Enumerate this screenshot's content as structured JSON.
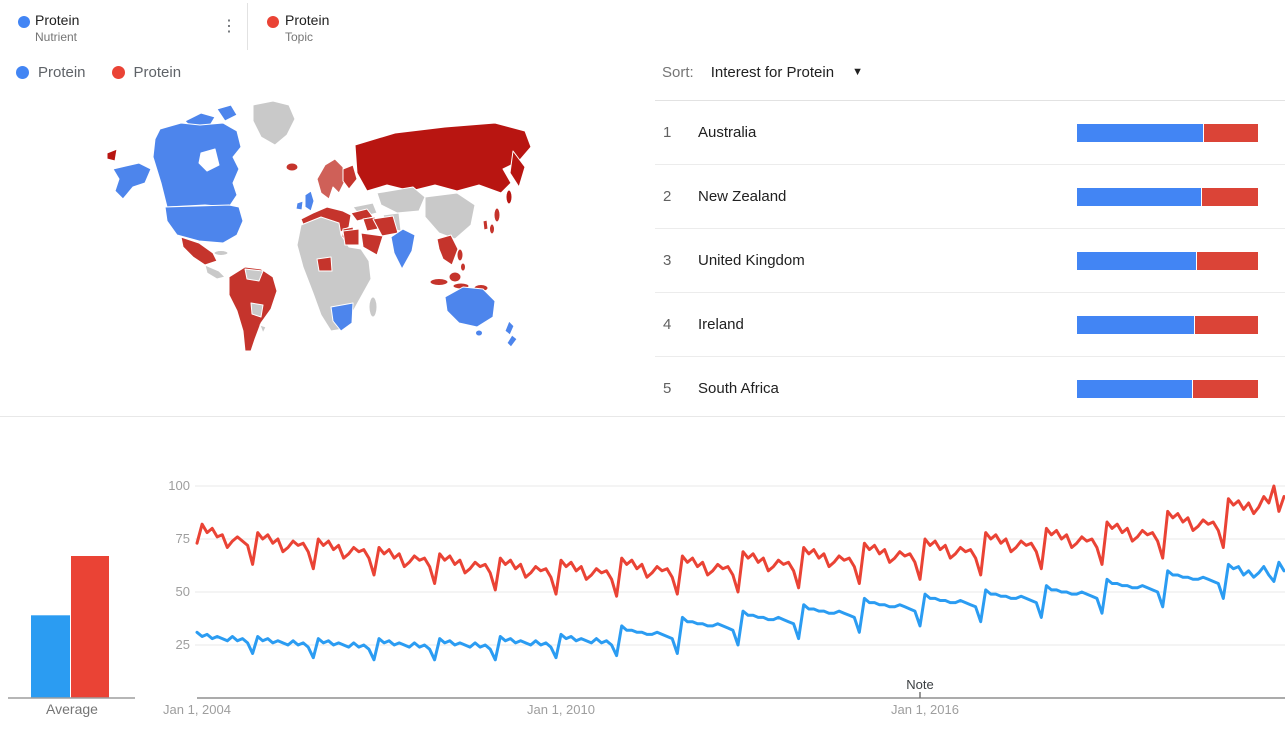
{
  "palette": {
    "dot_blue": "#4285f4",
    "dot_red": "#ea4335",
    "bar_blue": "#4285f4",
    "bar_red": "#db4437",
    "map_blue": "#4d85ec",
    "map_red_dark": "#b81511",
    "map_red": "#c5342c",
    "map_red_light": "#cf6058",
    "map_grey": "#c9c9c9",
    "grid_line": "#e8e8e8",
    "axis_line": "#8f8f8f",
    "divider": "#e2e2e2",
    "text_primary": "#212121",
    "text_secondary": "#757575",
    "text_axis": "#9e9e9e"
  },
  "header": {
    "menu_icon": "⋮",
    "terms": [
      {
        "title": "Protein",
        "subtitle": "Nutrient",
        "color": "#4285f4"
      },
      {
        "title": "Protein",
        "subtitle": "Topic",
        "color": "#ea4335"
      }
    ]
  },
  "legend": {
    "items": [
      {
        "label": "Protein",
        "color": "#4285f4"
      },
      {
        "label": "Protein",
        "color": "#ea4335"
      }
    ]
  },
  "map": {
    "regions": {
      "chukotka": "red_dark",
      "alaska": "blue",
      "canada": "blue",
      "arctic_islands_1": "blue",
      "arctic_islands_2": "blue",
      "usa": "blue",
      "greenland": "grey",
      "mexico": "red",
      "central_america": "grey",
      "cuba": "grey",
      "south_america": "red",
      "venezuela": "grey",
      "bolivia": "grey",
      "uruguay": "grey",
      "iceland": "red",
      "uk": "blue",
      "ireland": "blue",
      "scandinavia": "red_light",
      "finland": "red",
      "europe": "red",
      "iberia": "red",
      "italy": "red",
      "balkans": "red",
      "eastern_europe": "grey",
      "russia": "red_dark",
      "kamchatka": "red_dark",
      "sakhalin": "red_dark",
      "central_asia": "grey",
      "china": "grey",
      "afghanistan_pakistan": "grey",
      "turkey": "red",
      "iraq_syria": "red",
      "iran": "red",
      "saudi_arabia": "red",
      "egypt": "red",
      "africa": "grey",
      "nigeria": "red",
      "south_africa": "blue",
      "madagascar": "grey",
      "india": "blue",
      "indochina": "red",
      "philippines_north": "red",
      "philippines_south": "red",
      "borneo": "red",
      "sumatra": "red",
      "java": "red",
      "new_guinea": "red",
      "japan_north": "red",
      "japan_south": "red",
      "korea": "red",
      "australia": "blue",
      "tasmania": "blue",
      "new_zealand_north": "blue",
      "new_zealand_south": "blue"
    }
  },
  "geo_list": {
    "sort_label": "Sort:",
    "sort_value": "Interest for Protein",
    "sort_arrow": "▼",
    "rows": [
      {
        "rank": "1",
        "name": "Australia",
        "blue_pct": 70,
        "red_pct": 30
      },
      {
        "rank": "2",
        "name": "New Zealand",
        "blue_pct": 69,
        "red_pct": 31
      },
      {
        "rank": "3",
        "name": "United Kingdom",
        "blue_pct": 66,
        "red_pct": 34
      },
      {
        "rank": "4",
        "name": "Ireland",
        "blue_pct": 65,
        "red_pct": 35
      },
      {
        "rank": "5",
        "name": "South Africa",
        "blue_pct": 64,
        "red_pct": 36
      }
    ]
  },
  "average_chart": {
    "label": "Average",
    "values": [
      39,
      67
    ]
  },
  "chart_data": {
    "type": "line",
    "x_ticks": [
      "Jan 1, 2004",
      "Jan 1, 2010",
      "Jan 1, 2016"
    ],
    "y_ticks": [
      "100",
      "75",
      "50",
      "25"
    ],
    "ylim": [
      0,
      100
    ],
    "x_range": "monthly, Jan 2004 onward",
    "grid": true,
    "note_label": "Note",
    "series": [
      {
        "name": "Protein (Nutrient)",
        "color": "#2b9cf2",
        "values": [
          31,
          29,
          30,
          28,
          29,
          28,
          27,
          29,
          27,
          28,
          26,
          21,
          29,
          27,
          28,
          26,
          27,
          26,
          25,
          27,
          25,
          26,
          24,
          19,
          28,
          26,
          27,
          25,
          26,
          25,
          24,
          26,
          24,
          25,
          23,
          18,
          28,
          26,
          27,
          25,
          26,
          25,
          24,
          26,
          24,
          25,
          23,
          18,
          28,
          26,
          27,
          25,
          26,
          25,
          24,
          26,
          24,
          25,
          23,
          18,
          29,
          27,
          28,
          26,
          27,
          26,
          25,
          27,
          25,
          26,
          24,
          19,
          30,
          28,
          29,
          27,
          28,
          27,
          26,
          28,
          26,
          27,
          25,
          20,
          34,
          32,
          32,
          31,
          31,
          30,
          30,
          31,
          30,
          29,
          28,
          21,
          38,
          36,
          36,
          35,
          35,
          34,
          34,
          35,
          34,
          33,
          32,
          25,
          41,
          39,
          39,
          38,
          38,
          37,
          37,
          38,
          37,
          36,
          35,
          28,
          44,
          42,
          42,
          41,
          41,
          40,
          40,
          41,
          40,
          39,
          38,
          31,
          47,
          45,
          45,
          44,
          44,
          43,
          43,
          44,
          43,
          42,
          41,
          34,
          49,
          47,
          47,
          46,
          46,
          45,
          45,
          46,
          45,
          44,
          43,
          36,
          51,
          49,
          49,
          48,
          48,
          47,
          47,
          48,
          47,
          46,
          45,
          38,
          53,
          51,
          51,
          50,
          50,
          49,
          49,
          50,
          49,
          48,
          47,
          40,
          56,
          54,
          54,
          53,
          53,
          52,
          52,
          53,
          52,
          51,
          50,
          43,
          60,
          58,
          58,
          57,
          57,
          56,
          56,
          57,
          56,
          55,
          54,
          47,
          63,
          61,
          62,
          58,
          60,
          57,
          59,
          62,
          58,
          55,
          64,
          60
        ]
      },
      {
        "name": "Protein (Topic)",
        "color": "#ea4335",
        "values": [
          73,
          82,
          78,
          80,
          76,
          77,
          71,
          74,
          76,
          74,
          72,
          63,
          78,
          75,
          77,
          73,
          75,
          69,
          71,
          74,
          72,
          73,
          69,
          61,
          75,
          72,
          74,
          70,
          72,
          66,
          68,
          71,
          69,
          70,
          66,
          58,
          71,
          68,
          70,
          66,
          68,
          62,
          64,
          67,
          65,
          66,
          62,
          54,
          68,
          65,
          67,
          63,
          65,
          59,
          61,
          64,
          62,
          63,
          59,
          51,
          66,
          63,
          65,
          61,
          63,
          57,
          59,
          62,
          60,
          61,
          57,
          49,
          65,
          62,
          64,
          60,
          62,
          56,
          58,
          61,
          59,
          60,
          56,
          48,
          66,
          63,
          65,
          61,
          63,
          57,
          59,
          62,
          60,
          61,
          57,
          49,
          67,
          64,
          66,
          62,
          64,
          58,
          60,
          63,
          61,
          62,
          58,
          50,
          69,
          66,
          68,
          64,
          66,
          60,
          62,
          65,
          63,
          64,
          60,
          52,
          71,
          68,
          70,
          66,
          68,
          62,
          64,
          67,
          65,
          66,
          62,
          54,
          73,
          70,
          72,
          68,
          70,
          64,
          66,
          69,
          67,
          68,
          64,
          56,
          75,
          72,
          74,
          70,
          72,
          66,
          68,
          71,
          69,
          70,
          66,
          58,
          78,
          75,
          77,
          73,
          75,
          69,
          71,
          74,
          72,
          73,
          69,
          61,
          80,
          77,
          79,
          75,
          77,
          71,
          73,
          76,
          74,
          75,
          71,
          63,
          83,
          80,
          82,
          78,
          80,
          74,
          76,
          79,
          77,
          78,
          74,
          66,
          88,
          85,
          87,
          83,
          85,
          79,
          81,
          84,
          82,
          83,
          79,
          71,
          94,
          91,
          93,
          89,
          92,
          87,
          90,
          95,
          92,
          100,
          88,
          95
        ]
      }
    ]
  }
}
